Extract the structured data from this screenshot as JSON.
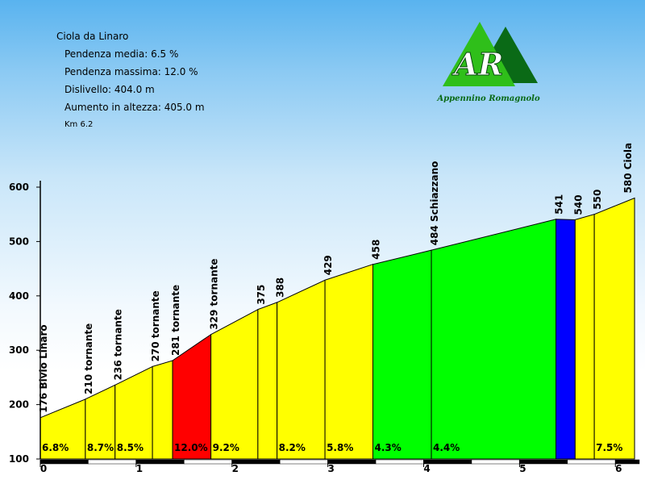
{
  "info": {
    "title": "Ciola da Linaro",
    "avg_grade": "Pendenza media: 6.5 %",
    "max_grade": "Pendenza massima: 12.0 %",
    "elevation_diff": "Dislivello: 404.0 m",
    "total_gain": "Aumento in altezza: 405.0 m",
    "distance": "Km 6.2"
  },
  "logo": {
    "initials": "AR",
    "tagline": "Appennino Romagnolo",
    "colors": {
      "light": "#2fbf1a",
      "dark": "#0a6a16"
    }
  },
  "chart_data": {
    "type": "area",
    "xlim": [
      0,
      6.25
    ],
    "ylim": [
      100,
      600
    ],
    "x_ticks": [
      "0",
      "1",
      "2",
      "3",
      "4",
      "5",
      "6"
    ],
    "y_ticks": [
      "100",
      "200",
      "300",
      "400",
      "500",
      "600"
    ],
    "points": [
      {
        "x": 0.0,
        "y": 176,
        "label": "176 Bivio Linaro"
      },
      {
        "x": 0.47,
        "y": 210,
        "label": "210 tornante"
      },
      {
        "x": 0.78,
        "y": 236,
        "label": "236 tornante"
      },
      {
        "x": 1.17,
        "y": 270,
        "label": "270 tornante"
      },
      {
        "x": 1.38,
        "y": 281,
        "label": "281 tornante"
      },
      {
        "x": 1.78,
        "y": 329,
        "label": "329 tornante"
      },
      {
        "x": 2.27,
        "y": 375,
        "label": "375"
      },
      {
        "x": 2.47,
        "y": 388,
        "label": "388"
      },
      {
        "x": 2.97,
        "y": 429,
        "label": "429"
      },
      {
        "x": 3.47,
        "y": 458,
        "label": "458"
      },
      {
        "x": 4.08,
        "y": 484,
        "label": "484 Schiazzano"
      },
      {
        "x": 5.38,
        "y": 541,
        "label": "541"
      },
      {
        "x": 5.58,
        "y": 540,
        "label": "540"
      },
      {
        "x": 5.78,
        "y": 550,
        "label": "550"
      },
      {
        "x": 6.2,
        "y": 580,
        "label": "580 Ciola"
      }
    ],
    "segments": [
      {
        "grade": "6.8%",
        "color": "#ffff00"
      },
      {
        "grade": "8.7%",
        "color": "#ffff00"
      },
      {
        "grade": "8.5%",
        "color": "#ffff00"
      },
      {
        "grade": "",
        "color": "#ffff00"
      },
      {
        "grade": "12.0%",
        "color": "#ff0000"
      },
      {
        "grade": "9.2%",
        "color": "#ffff00"
      },
      {
        "grade": "",
        "color": "#ffff00"
      },
      {
        "grade": "8.2%",
        "color": "#ffff00"
      },
      {
        "grade": "5.8%",
        "color": "#ffff00"
      },
      {
        "grade": "4.3%",
        "color": "#00ff00"
      },
      {
        "grade": "4.4%",
        "color": "#00ff00"
      },
      {
        "grade": "",
        "color": "#0000ff"
      },
      {
        "grade": "",
        "color": "#ffff00"
      },
      {
        "grade": "7.5%",
        "color": "#ffff00"
      }
    ]
  }
}
